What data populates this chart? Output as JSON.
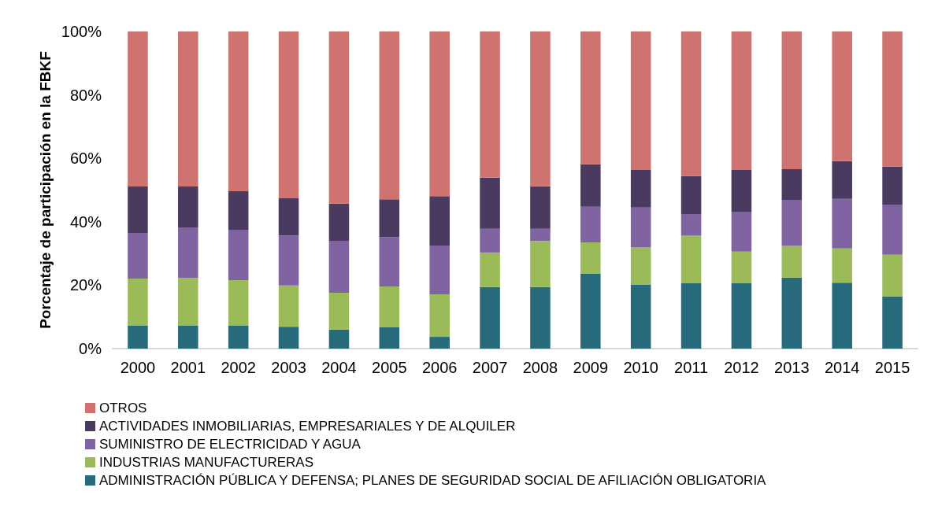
{
  "chart_data": {
    "type": "bar",
    "stacked": true,
    "ylabel": "Porcentaje de participación en la FBKF",
    "categories": [
      "2000",
      "2001",
      "2002",
      "2003",
      "2004",
      "2005",
      "2006",
      "2007",
      "2008",
      "2009",
      "2010",
      "2011",
      "2012",
      "2013",
      "2014",
      "2015"
    ],
    "series": [
      {
        "name": "ADMINISTRACIÓN PÚBLICA Y DEFENSA; PLANES DE SEGURIDAD SOCIAL DE AFILIACIÓN OBLIGATORIA",
        "color": "#276a7c",
        "values": [
          7.2,
          7.2,
          7.2,
          6.9,
          6.0,
          6.7,
          3.7,
          19.4,
          19.4,
          23.7,
          20.2,
          20.7,
          20.7,
          22.4,
          20.8,
          16.5
        ]
      },
      {
        "name": "INDUSTRIAS MANUFACTURERAS",
        "color": "#9bbb59",
        "values": [
          14.9,
          15.1,
          14.4,
          13.0,
          11.6,
          12.9,
          13.4,
          10.9,
          14.5,
          9.8,
          11.7,
          14.9,
          9.9,
          10.0,
          10.8,
          13.1
        ]
      },
      {
        "name": "SUMINISTRO DE ELECTRICIDAD Y AGUA",
        "color": "#8064a2",
        "values": [
          14.4,
          15.9,
          15.9,
          15.8,
          16.4,
          15.6,
          15.4,
          7.5,
          3.9,
          11.2,
          12.6,
          6.8,
          12.4,
          14.5,
          15.6,
          15.8
        ]
      },
      {
        "name": "ACTIVIDADES INMOBILIARIAS, EMPRESARIALES Y DE ALQUILER",
        "color": "#4a3a60",
        "values": [
          14.6,
          12.9,
          12.1,
          11.7,
          11.7,
          11.9,
          15.6,
          16.1,
          13.4,
          13.4,
          11.8,
          12.0,
          13.3,
          9.7,
          11.9,
          12.0
        ]
      },
      {
        "name": "OTROS",
        "color": "#cf7370",
        "values": [
          48.9,
          48.9,
          50.4,
          52.6,
          54.3,
          52.9,
          51.9,
          46.1,
          48.8,
          41.9,
          43.7,
          45.6,
          43.7,
          43.4,
          40.9,
          42.6
        ]
      }
    ],
    "ylim": [
      0,
      100
    ],
    "yticks": [
      {
        "value": 0,
        "label": "0%"
      },
      {
        "value": 20,
        "label": "20%"
      },
      {
        "value": 40,
        "label": "40%"
      },
      {
        "value": 60,
        "label": "60%"
      },
      {
        "value": 80,
        "label": "80%"
      },
      {
        "value": 100,
        "label": "100%"
      }
    ],
    "grid": false,
    "legend": "bottom"
  }
}
